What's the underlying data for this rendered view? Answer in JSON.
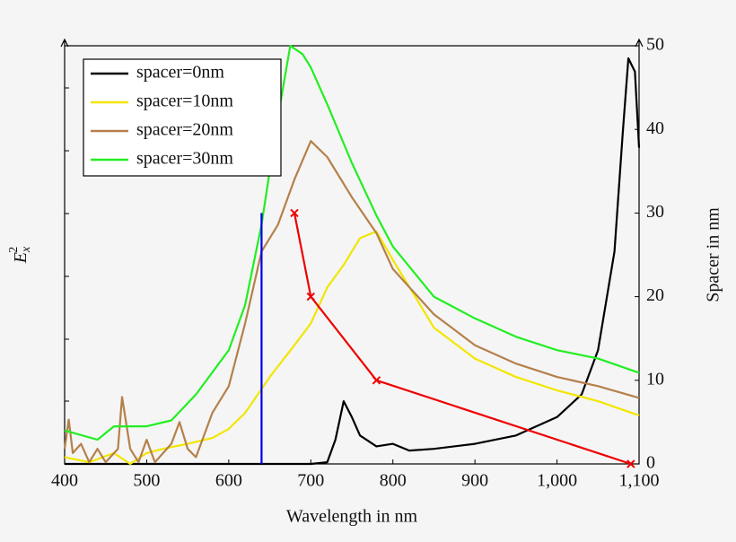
{
  "chart_data": {
    "type": "line",
    "xlabel": "Wavelength in nm",
    "ylabel": {
      "base": "E",
      "sub": "x",
      "sup": "2"
    },
    "y2label": "Spacer in nm",
    "xlim": [
      400,
      1100
    ],
    "xticks": [
      400,
      500,
      600,
      700,
      800,
      900,
      {
        "value": 1000,
        "label": "1,000"
      },
      {
        "value": 1100,
        "label": "1,100"
      }
    ],
    "ylim": [
      0,
      50
    ],
    "y2lim": [
      0,
      50
    ],
    "y2ticks": [
      0,
      10,
      20,
      30,
      40,
      50
    ],
    "legend": "upper left",
    "series": [
      {
        "name": "spacer=0nm",
        "color": "#000000",
        "x": [
          400,
          500,
          600,
          700,
          720,
          730,
          740,
          750,
          760,
          780,
          800,
          820,
          850,
          900,
          950,
          1000,
          1030,
          1050,
          1070,
          1080,
          1087,
          1095,
          1100
        ],
        "values": [
          0,
          0,
          0,
          0,
          0.2,
          2.9,
          7.5,
          5.6,
          3.4,
          2.1,
          2.4,
          1.6,
          1.8,
          2.4,
          3.4,
          5.6,
          8.3,
          13.6,
          25.4,
          39.4,
          48.5,
          46.9,
          37.8
        ]
      },
      {
        "name": "spacer=10nm",
        "color": "#f2e600",
        "x": [
          400,
          430,
          460,
          480,
          500,
          520,
          550,
          580,
          600,
          620,
          650,
          680,
          700,
          720,
          740,
          760,
          780,
          800,
          850,
          900,
          950,
          1000,
          1050,
          1100
        ],
        "values": [
          0.8,
          0.2,
          1.3,
          0,
          1.3,
          1.8,
          2.4,
          3.1,
          4.2,
          6.1,
          10.4,
          14.2,
          16.8,
          21.1,
          23.8,
          27,
          27.8,
          24.4,
          16.3,
          12.6,
          10.4,
          8.8,
          7.5,
          5.8
        ]
      },
      {
        "name": "spacer=20nm",
        "color": "#b5804a",
        "x": [
          400,
          405,
          410,
          420,
          430,
          440,
          450,
          465,
          470,
          480,
          490,
          500,
          510,
          530,
          540,
          550,
          560,
          580,
          600,
          620,
          640,
          660,
          680,
          700,
          720,
          750,
          780,
          800,
          850,
          900,
          950,
          1000,
          1050,
          1100
        ],
        "values": [
          1.8,
          5.3,
          1.3,
          2.4,
          0.2,
          1.8,
          0.2,
          1.8,
          8,
          1.8,
          0.2,
          2.9,
          0.2,
          2.4,
          5,
          1.8,
          0.8,
          6.1,
          9.3,
          16.8,
          25.4,
          28.6,
          34,
          38.6,
          36.7,
          31.9,
          27.6,
          23.3,
          17.9,
          14.2,
          12,
          10.4,
          9.3,
          7.9
        ]
      },
      {
        "name": "spacer=30nm",
        "color": "#22ee22",
        "x": [
          400,
          440,
          460,
          500,
          530,
          560,
          600,
          620,
          640,
          660,
          675,
          690,
          700,
          720,
          750,
          780,
          800,
          850,
          900,
          950,
          1000,
          1050,
          1100
        ],
        "values": [
          4,
          2.9,
          4.5,
          4.5,
          5.2,
          8.3,
          13.6,
          19,
          28.6,
          41.5,
          50,
          49,
          47.4,
          43,
          36,
          29.7,
          26,
          20,
          17.4,
          15.2,
          13.6,
          12.6,
          10.9
        ]
      },
      {
        "color": "#0000ee",
        "axis": "y2",
        "x": [
          640,
          640
        ],
        "values": [
          0,
          30
        ]
      },
      {
        "color": "#ee0000",
        "axis": "y2",
        "marker": "x",
        "x": [
          680,
          700,
          780,
          1090
        ],
        "values": [
          30,
          20,
          10,
          0
        ]
      }
    ]
  }
}
